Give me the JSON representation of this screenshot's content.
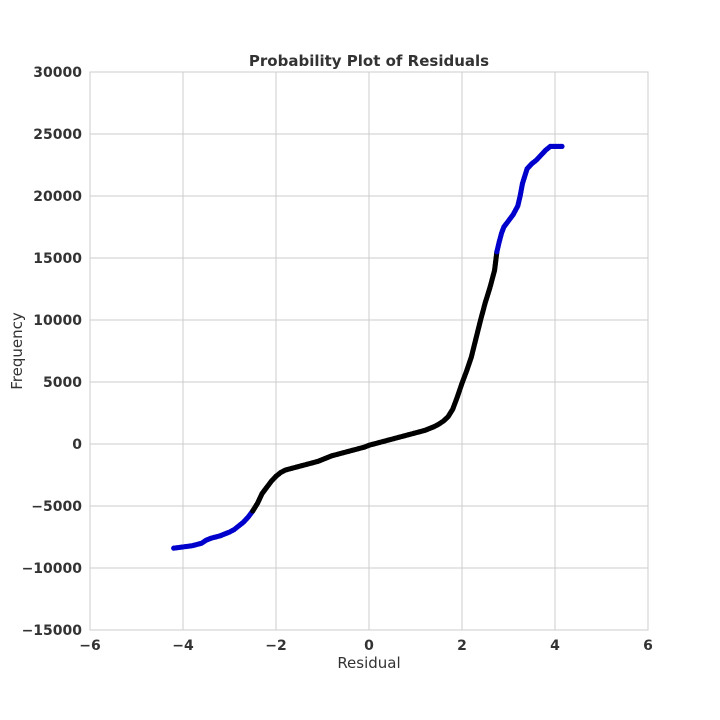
{
  "chart_data": {
    "type": "scatter",
    "title": "Probability Plot of Residuals",
    "xlabel": "Residual",
    "ylabel": "Frequency",
    "xlim": [
      -6,
      6
    ],
    "ylim": [
      -15000,
      30000
    ],
    "xticks": [
      -6,
      -4,
      -2,
      0,
      2,
      4,
      6
    ],
    "yticks": [
      -15000,
      -10000,
      -5000,
      0,
      5000,
      10000,
      15000,
      20000,
      25000,
      30000
    ],
    "xtick_labels": [
      "−6",
      "−4",
      "−2",
      "0",
      "2",
      "4",
      "6"
    ],
    "ytick_labels": [
      "−15000",
      "−10000",
      "−5000",
      "0",
      "5000",
      "10000",
      "15000",
      "20000",
      "25000",
      "30000"
    ],
    "grid": true,
    "series": [
      {
        "color": "#0000cc",
        "points": [
          [
            -4.2,
            -8400
          ],
          [
            -4.0,
            -8300
          ],
          [
            -3.9,
            -8250
          ],
          [
            -3.8,
            -8200
          ],
          [
            -3.7,
            -8100
          ],
          [
            -3.6,
            -8000
          ],
          [
            -3.5,
            -7750
          ],
          [
            -3.4,
            -7600
          ],
          [
            -3.3,
            -7500
          ],
          [
            -3.2,
            -7400
          ],
          [
            -3.1,
            -7250
          ],
          [
            -3.0,
            -7100
          ],
          [
            -2.9,
            -6900
          ],
          [
            -2.8,
            -6600
          ],
          [
            -2.7,
            -6300
          ],
          [
            -2.6,
            -5900
          ],
          [
            -2.5,
            -5400
          ]
        ]
      },
      {
        "color": "#000000",
        "points": [
          [
            -2.5,
            -5400
          ],
          [
            -2.4,
            -4800
          ],
          [
            -2.3,
            -4000
          ],
          [
            -2.2,
            -3500
          ],
          [
            -2.1,
            -3000
          ],
          [
            -2.0,
            -2600
          ],
          [
            -1.9,
            -2300
          ],
          [
            -1.8,
            -2100
          ],
          [
            -1.7,
            -2000
          ],
          [
            -1.6,
            -1900
          ],
          [
            -1.5,
            -1800
          ],
          [
            -1.4,
            -1700
          ],
          [
            -1.3,
            -1600
          ],
          [
            -1.2,
            -1500
          ],
          [
            -1.1,
            -1400
          ],
          [
            -1.0,
            -1250
          ],
          [
            -0.9,
            -1100
          ],
          [
            -0.8,
            -950
          ],
          [
            -0.7,
            -850
          ],
          [
            -0.6,
            -750
          ],
          [
            -0.5,
            -650
          ],
          [
            -0.4,
            -550
          ],
          [
            -0.3,
            -450
          ],
          [
            -0.2,
            -350
          ],
          [
            -0.1,
            -250
          ],
          [
            0.0,
            -100
          ],
          [
            0.1,
            0
          ],
          [
            0.2,
            100
          ],
          [
            0.3,
            200
          ],
          [
            0.4,
            300
          ],
          [
            0.5,
            400
          ],
          [
            0.6,
            500
          ],
          [
            0.7,
            600
          ],
          [
            0.8,
            700
          ],
          [
            0.9,
            800
          ],
          [
            1.0,
            900
          ],
          [
            1.1,
            1000
          ],
          [
            1.2,
            1100
          ],
          [
            1.3,
            1250
          ],
          [
            1.4,
            1400
          ],
          [
            1.5,
            1600
          ],
          [
            1.6,
            1850
          ],
          [
            1.7,
            2200
          ],
          [
            1.8,
            2800
          ],
          [
            1.9,
            3800
          ],
          [
            2.0,
            4900
          ],
          [
            2.1,
            5900
          ],
          [
            2.2,
            7000
          ],
          [
            2.3,
            8500
          ],
          [
            2.4,
            10000
          ],
          [
            2.5,
            11400
          ],
          [
            2.6,
            12600
          ],
          [
            2.7,
            14000
          ],
          [
            2.75,
            15500
          ]
        ]
      },
      {
        "color": "#0000cc",
        "points": [
          [
            2.75,
            15500
          ],
          [
            2.8,
            16300
          ],
          [
            2.85,
            17000
          ],
          [
            2.9,
            17500
          ],
          [
            3.0,
            18000
          ],
          [
            3.1,
            18500
          ],
          [
            3.2,
            19200
          ],
          [
            3.25,
            20000
          ],
          [
            3.3,
            21000
          ],
          [
            3.35,
            21600
          ],
          [
            3.4,
            22200
          ],
          [
            3.5,
            22600
          ],
          [
            3.6,
            22900
          ],
          [
            3.7,
            23300
          ],
          [
            3.8,
            23700
          ],
          [
            3.9,
            24000
          ],
          [
            4.15,
            24000
          ]
        ]
      }
    ]
  }
}
